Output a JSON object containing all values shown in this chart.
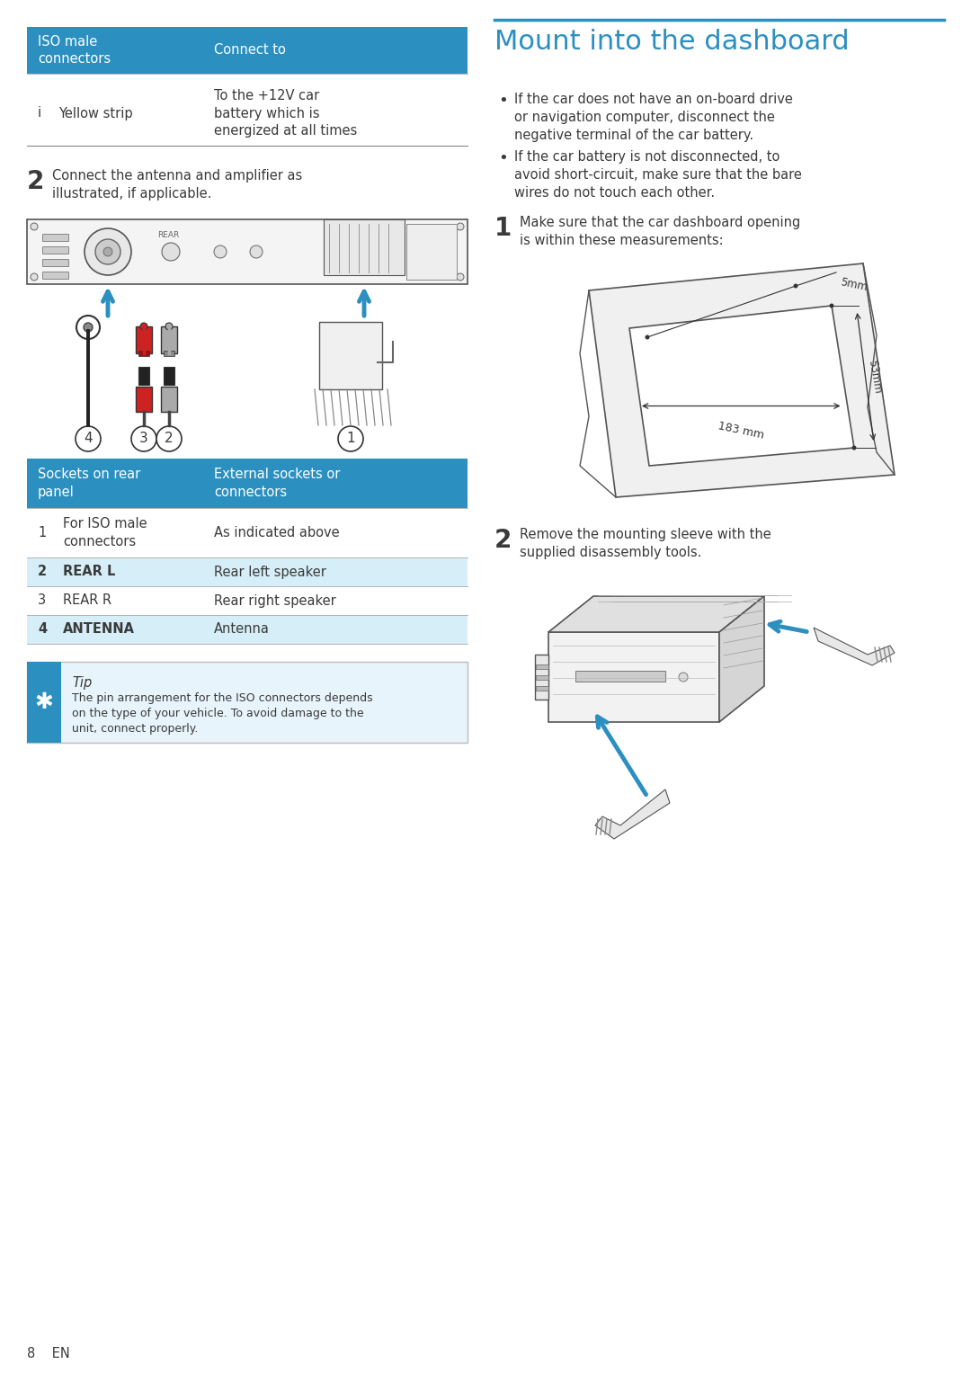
{
  "bg_color": "#ffffff",
  "blue_header": "#2b8fc0",
  "light_blue_row": "#d6eef8",
  "text_dark": "#3a3a3a",
  "text_white": "#ffffff",
  "title": "Mount into the dashboard",
  "title_color": "#2b8fc0",
  "left_table1_header_col1": "ISO male\nconnectors",
  "left_table1_header_col2": "Connect to",
  "left_table1_row_num": "i",
  "left_table1_row_col1": "Yellow strip",
  "left_table1_row_col2": "To the +12V car\nbattery which is\nenergized at all times",
  "step2_num": "2",
  "step2_text": "Connect the antenna and amplifier as\nillustrated, if applicable.",
  "left_table2_header_col1": "Sockets on rear\npanel",
  "left_table2_header_col2": "External sockets or\nconnectors",
  "left_table2_rows": [
    [
      "1",
      "For ISO male\nconnectors",
      "As indicated above",
      false
    ],
    [
      "2",
      "REAR L",
      "Rear left speaker",
      true
    ],
    [
      "3",
      "REAR R",
      "Rear right speaker",
      false
    ],
    [
      "4",
      "ANTENNA",
      "Antenna",
      true
    ]
  ],
  "tip_title": "Tip",
  "tip_text": "The pin arrangement for the ISO connectors depends\non the type of your vehicle. To avoid damage to the\nunit, connect properly.",
  "bullet1": "If the car does not have an on-board drive\nor navigation computer, disconnect the\nnegative terminal of the car battery.",
  "bullet2": "If the car battery is not disconnected, to\navoid short-circuit, make sure that the bare\nwires do not touch each other.",
  "r_step1_num": "1",
  "r_step1_text": "Make sure that the car dashboard opening\nis within these measurements:",
  "r_step2_num": "2",
  "r_step2_text": "Remove the mounting sleeve with the\nsupplied disassembly tools.",
  "dim_width": "183 mm",
  "dim_height": "53mm",
  "dim_depth": "5mm",
  "page_num": "8    EN"
}
